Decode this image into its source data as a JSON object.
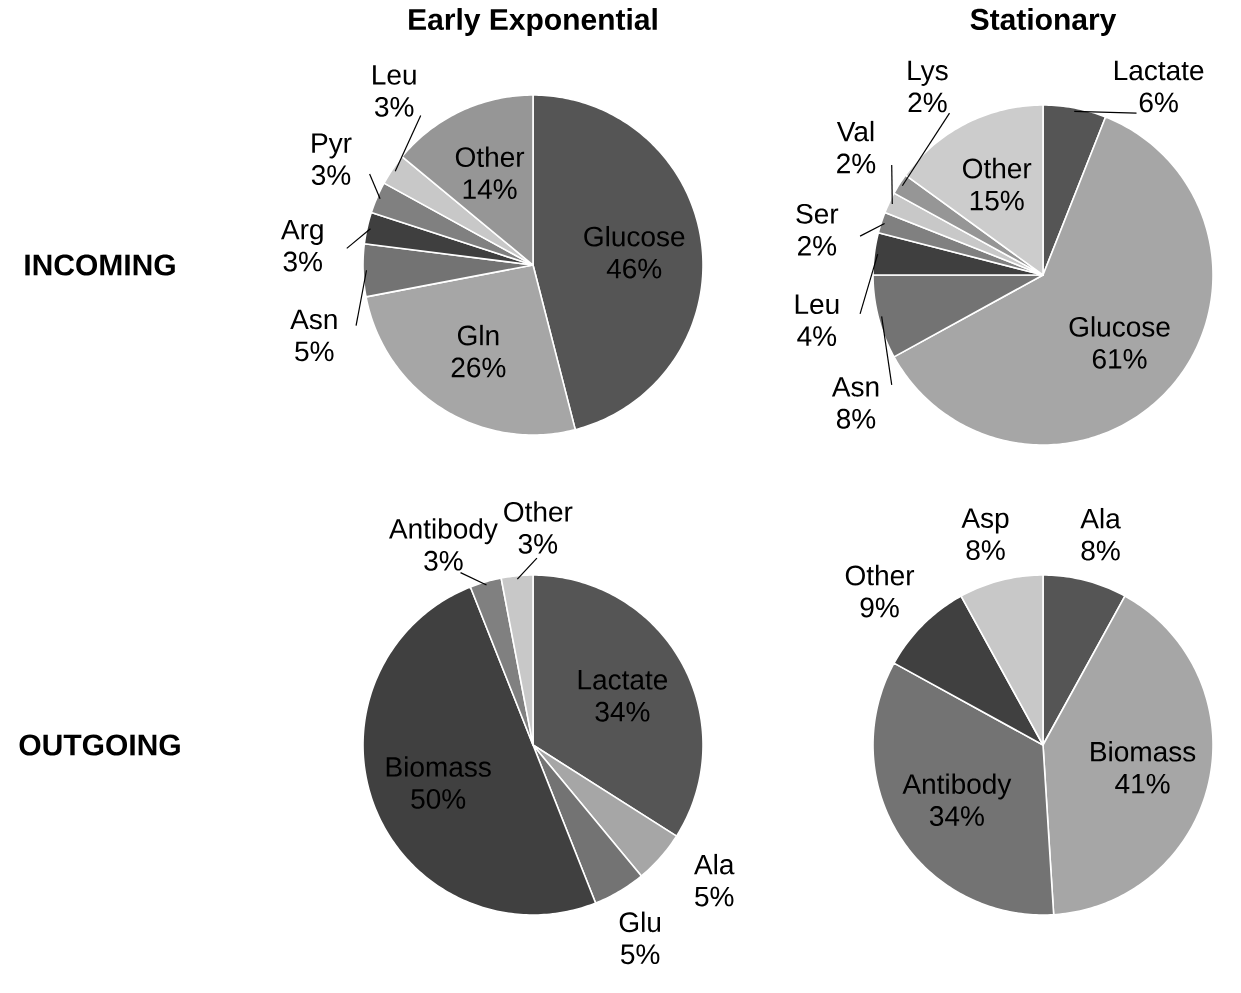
{
  "chart_data": [
    {
      "type": "pie",
      "title": "Early Exponential",
      "ylabel": "INCOMING",
      "categories": [
        "Glucose",
        "Gln",
        "Asn",
        "Arg",
        "Pyr",
        "Leu",
        "Other"
      ],
      "values": [
        46,
        26,
        5,
        3,
        3,
        3,
        14
      ],
      "value_labels": [
        "46%",
        "26%",
        "5%",
        "3%",
        "3%",
        "3%",
        "14%"
      ],
      "colors": [
        "#555555",
        "#a6a6a6",
        "#737373",
        "#3f3f3f",
        "#808080",
        "#c8c8c8",
        "#969696"
      ]
    },
    {
      "type": "pie",
      "title": "Stationary",
      "categories": [
        "Lactate",
        "Glucose",
        "Asn",
        "Leu",
        "Ser",
        "Val",
        "Lys",
        "Other"
      ],
      "values": [
        6,
        61,
        8,
        4,
        2,
        2,
        2,
        15
      ],
      "value_labels": [
        "6%",
        "61%",
        "8%",
        "4%",
        "2%",
        "2%",
        "2%",
        "15%"
      ],
      "colors": [
        "#555555",
        "#a6a6a6",
        "#737373",
        "#3f3f3f",
        "#808080",
        "#c8c8c8",
        "#969696",
        "#cccccc"
      ]
    },
    {
      "type": "pie",
      "ylabel": "OUTGOING",
      "categories": [
        "Lactate",
        "Ala",
        "Glu",
        "Biomass",
        "Antibody",
        "Other"
      ],
      "values": [
        34,
        5,
        5,
        50,
        3,
        3
      ],
      "value_labels": [
        "34%",
        "5%",
        "5%",
        "50%",
        "3%",
        "3%"
      ],
      "colors": [
        "#555555",
        "#a6a6a6",
        "#737373",
        "#404040",
        "#808080",
        "#c8c8c8"
      ]
    },
    {
      "type": "pie",
      "categories": [
        "Ala",
        "Biomass",
        "Antibody",
        "Other",
        "Asp"
      ],
      "values": [
        8,
        41,
        34,
        9,
        8
      ],
      "value_labels": [
        "8%",
        "41%",
        "34%",
        "9%",
        "8%"
      ],
      "colors": [
        "#555555",
        "#a6a6a6",
        "#737373",
        "#404040",
        "#c8c8c8"
      ]
    }
  ]
}
